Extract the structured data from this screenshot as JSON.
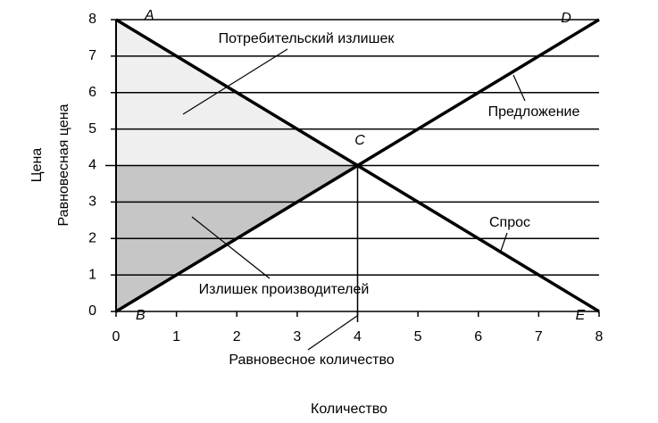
{
  "chart_data": {
    "type": "line",
    "xlabel": "Количество",
    "ylabel": "Цена",
    "x": [
      0,
      8
    ],
    "series": [
      {
        "name": "Спрос",
        "color": "#000000",
        "values": [
          8,
          0
        ]
      },
      {
        "name": "Предложение",
        "color": "#000000",
        "values": [
          0,
          8
        ]
      }
    ],
    "equilibrium": {
      "x": 4,
      "y": 4
    },
    "consumer_surplus_color": "#efefef",
    "producer_surplus_color": "#c6c6c6",
    "xlim": [
      0,
      8
    ],
    "ylim": [
      0,
      8
    ],
    "xticks": [
      0,
      1,
      2,
      3,
      4,
      5,
      6,
      7,
      8
    ],
    "yticks": [
      0,
      1,
      2,
      3,
      4,
      5,
      6,
      7,
      8
    ],
    "grid": true,
    "annotations": [
      "A",
      "B",
      "C",
      "D",
      "E",
      "Потребительский излишек",
      "Излишек производителей",
      "Равновесное количество",
      "Равновесная цена"
    ]
  }
}
